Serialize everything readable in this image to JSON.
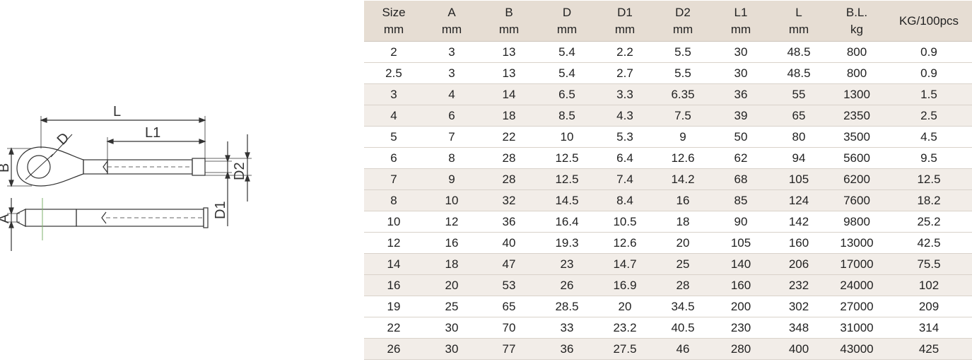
{
  "drawing": {
    "labels": {
      "L": "L",
      "L1": "L1",
      "D": "D",
      "B": "B",
      "A": "A",
      "D1": "D1",
      "D2": "D2"
    }
  },
  "table": {
    "columns": [
      {
        "name": "Size",
        "unit": "mm"
      },
      {
        "name": "A",
        "unit": "mm"
      },
      {
        "name": "B",
        "unit": "mm"
      },
      {
        "name": "D",
        "unit": "mm"
      },
      {
        "name": "D1",
        "unit": "mm"
      },
      {
        "name": "D2",
        "unit": "mm"
      },
      {
        "name": "L1",
        "unit": "mm"
      },
      {
        "name": "L",
        "unit": "mm"
      },
      {
        "name": "B.L.",
        "unit": "kg"
      },
      {
        "name": "KG/100pcs",
        "unit": ""
      }
    ],
    "rows": [
      [
        "2",
        "3",
        "13",
        "5.4",
        "2.2",
        "5.5",
        "30",
        "48.5",
        "800",
        "0.9"
      ],
      [
        "2.5",
        "3",
        "13",
        "5.4",
        "2.7",
        "5.5",
        "30",
        "48.5",
        "800",
        "0.9"
      ],
      [
        "3",
        "4",
        "14",
        "6.5",
        "3.3",
        "6.35",
        "36",
        "55",
        "1300",
        "1.5"
      ],
      [
        "4",
        "6",
        "18",
        "8.5",
        "4.3",
        "7.5",
        "39",
        "65",
        "2350",
        "2.5"
      ],
      [
        "5",
        "7",
        "22",
        "10",
        "5.3",
        "9",
        "50",
        "80",
        "3500",
        "4.5"
      ],
      [
        "6",
        "8",
        "28",
        "12.5",
        "6.4",
        "12.6",
        "62",
        "94",
        "5600",
        "9.5"
      ],
      [
        "7",
        "9",
        "28",
        "12.5",
        "7.4",
        "14.2",
        "68",
        "105",
        "6200",
        "12.5"
      ],
      [
        "8",
        "10",
        "32",
        "14.5",
        "8.4",
        "16",
        "85",
        "124",
        "7600",
        "18.2"
      ],
      [
        "10",
        "12",
        "36",
        "16.4",
        "10.5",
        "18",
        "90",
        "142",
        "9800",
        "25.2"
      ],
      [
        "12",
        "16",
        "40",
        "19.3",
        "12.6",
        "20",
        "105",
        "160",
        "13000",
        "42.5"
      ],
      [
        "14",
        "18",
        "47",
        "23",
        "14.7",
        "25",
        "140",
        "206",
        "17000",
        "75.5"
      ],
      [
        "16",
        "20",
        "53",
        "26",
        "16.9",
        "28",
        "160",
        "232",
        "24000",
        "102"
      ],
      [
        "19",
        "25",
        "65",
        "28.5",
        "20",
        "34.5",
        "200",
        "302",
        "27000",
        "209"
      ],
      [
        "22",
        "30",
        "70",
        "33",
        "23.2",
        "40.5",
        "230",
        "348",
        "31000",
        "314"
      ],
      [
        "26",
        "30",
        "77",
        "36",
        "27.5",
        "46",
        "280",
        "400",
        "43000",
        "425"
      ]
    ],
    "shaded_rows": [
      2,
      3,
      6,
      7,
      10,
      11,
      14
    ],
    "colors": {
      "header_bg": "#e6ddd3",
      "shade_bg": "#f2ede8"
    }
  }
}
